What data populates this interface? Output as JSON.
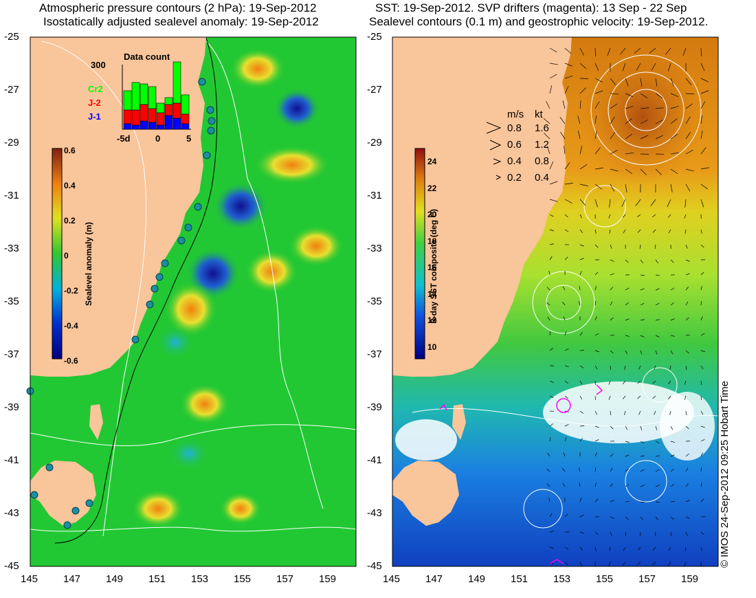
{
  "left_panel": {
    "title_line1": "Atmospheric pressure contours (2 hPa): 19-Sep-2012",
    "title_line2": "Isostatically adjusted sealevel anomaly: 19-Sep-2012",
    "colorbar": {
      "label": "Sealevel anomaly (m)",
      "ticks": [
        "0.6",
        "0.4",
        "0.2",
        "0",
        "-0.2",
        "-0.4",
        "-0.6"
      ],
      "range": [
        -0.6,
        0.6
      ]
    },
    "histogram": {
      "title": "Data count",
      "ymax_label": "300",
      "xticks": [
        "-5d",
        "0",
        "5"
      ],
      "legend": [
        {
          "name": "Cr2",
          "color": "#00ff00"
        },
        {
          "name": "J-2",
          "color": "#ff0000"
        },
        {
          "name": "J-1",
          "color": "#0000ff"
        }
      ]
    }
  },
  "right_panel": {
    "title_line1": "SST: 19-Sep-2012. SVP drifters (magenta): 13 Sep - 22 Sep",
    "title_line2": "Sealevel contours (0.1 m) and geostrophic velocity: 19-Sep-2012.",
    "colorbar": {
      "label": "3-day SST composite (deg C)",
      "ticks": [
        "24",
        "22",
        "20",
        "18",
        "16",
        "14",
        "12",
        "10"
      ],
      "range": [
        9,
        25
      ]
    },
    "velocity_key": {
      "unit_ms": "m/s",
      "unit_kt": "kt",
      "rows": [
        {
          "ms": "0.8",
          "kt": "1.6"
        },
        {
          "ms": "0.6",
          "kt": "1.2"
        },
        {
          "ms": "0.4",
          "kt": "0.8"
        },
        {
          "ms": "0.2",
          "kt": "0.4"
        }
      ]
    }
  },
  "axes": {
    "lat_ticks": [
      "-25",
      "-27",
      "-29",
      "-31",
      "-33",
      "-35",
      "-37",
      "-39",
      "-41",
      "-43",
      "-45"
    ],
    "lon_ticks": [
      "145",
      "147",
      "149",
      "151",
      "153",
      "155",
      "157",
      "159"
    ],
    "lat_range": [
      -45,
      -25
    ],
    "lon_range": [
      145,
      160
    ]
  },
  "credit": "© IMOS 24-Sep-2012 09:25 Hobart Time",
  "colors": {
    "land": "#f9c59a",
    "sla_field": "#22c833",
    "sst_warm": "#e08a10",
    "sst_cool": "#2a6adc",
    "drifters": "#ff00ff"
  }
}
